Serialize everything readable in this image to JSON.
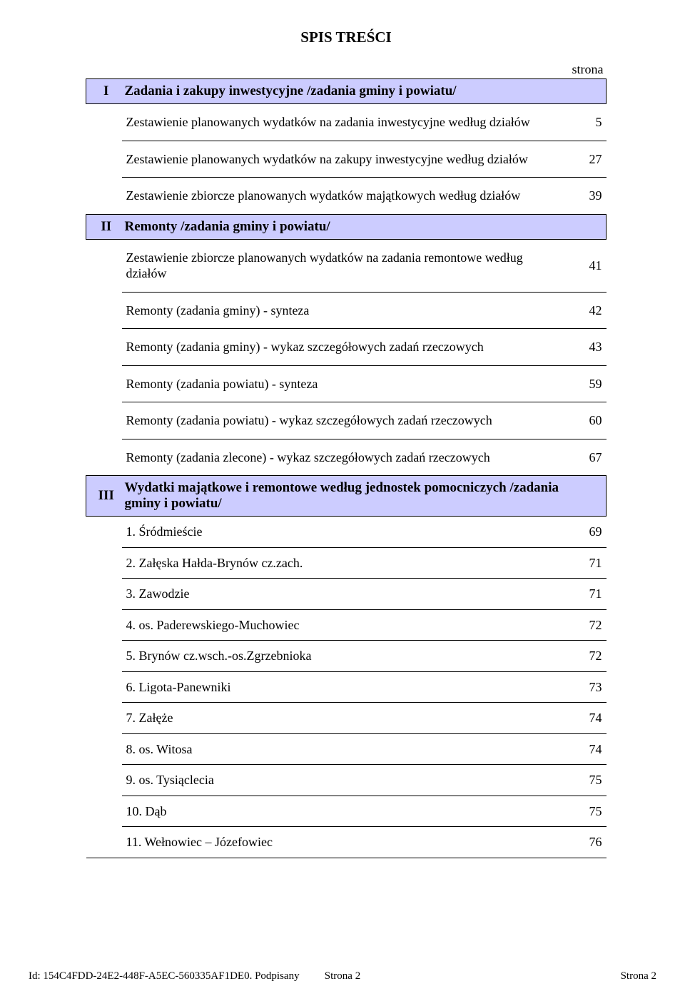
{
  "title": "SPIS  TREŚCI",
  "strona_label": "strona",
  "colors": {
    "section_bg": "#ccccff",
    "border": "#000000",
    "text": "#000000",
    "page_bg": "#ffffff"
  },
  "fonts": {
    "family": "Times New Roman",
    "title_size": 21,
    "section_size": 19,
    "item_size": 18,
    "footer_size": 15
  },
  "sections": [
    {
      "num": "I",
      "title": "Zadania i zakupy inwestycyjne /zadania gminy i powiatu/",
      "items": [
        {
          "label": "Zestawienie planowanych wydatków na zadania inwestycyjne według działów",
          "page": "5"
        },
        {
          "label": "Zestawienie planowanych wydatków na zakupy inwestycyjne według działów",
          "page": "27"
        },
        {
          "label": "Zestawienie zbiorcze planowanych wydatków majątkowych według działów",
          "page": "39"
        }
      ]
    },
    {
      "num": "II",
      "title": "Remonty  /zadania gminy i powiatu/",
      "items": [
        {
          "label": "Zestawienie zbiorcze planowanych wydatków na zadania remontowe według działów",
          "page": "41"
        },
        {
          "label": "Remonty (zadania gminy) - synteza",
          "page": "42"
        },
        {
          "label": "Remonty (zadania gminy) - wykaz szczegółowych zadań rzeczowych",
          "page": "43"
        },
        {
          "label": "Remonty (zadania powiatu) - synteza",
          "page": "59"
        },
        {
          "label": "Remonty (zadania powiatu) - wykaz szczegółowych zadań rzeczowych",
          "page": "60"
        },
        {
          "label": "Remonty (zadania zlecone) - wykaz szczegółowych zadań rzeczowych",
          "page": "67"
        }
      ]
    },
    {
      "num": "III",
      "title": "Wydatki majątkowe i remontowe według jednostek pomocniczych /zadania gminy i powiatu/",
      "items": [
        {
          "label": "1. Śródmieście",
          "page": "69"
        },
        {
          "label": "2. Załęska Hałda-Brynów cz.zach.",
          "page": "71"
        },
        {
          "label": "3. Zawodzie",
          "page": "71"
        },
        {
          "label": "4. os. Paderewskiego-Muchowiec",
          "page": "72"
        },
        {
          "label": "5. Brynów cz.wsch.-os.Zgrzebnioka",
          "page": "72"
        },
        {
          "label": "6. Ligota-Panewniki",
          "page": "73"
        },
        {
          "label": "7. Załęże",
          "page": "74"
        },
        {
          "label": "8. os. Witosa",
          "page": "74"
        },
        {
          "label": "9. os. Tysiąclecia",
          "page": "75"
        },
        {
          "label": "10. Dąb",
          "page": "75"
        },
        {
          "label": "11. Wełnowiec – Józefowiec",
          "page": "76"
        }
      ]
    }
  ],
  "footer": {
    "left": "Id: 154C4FDD-24E2-448F-A5EC-560335AF1DE0. Podpisany",
    "center": "Strona 2",
    "right": "Strona 2"
  }
}
